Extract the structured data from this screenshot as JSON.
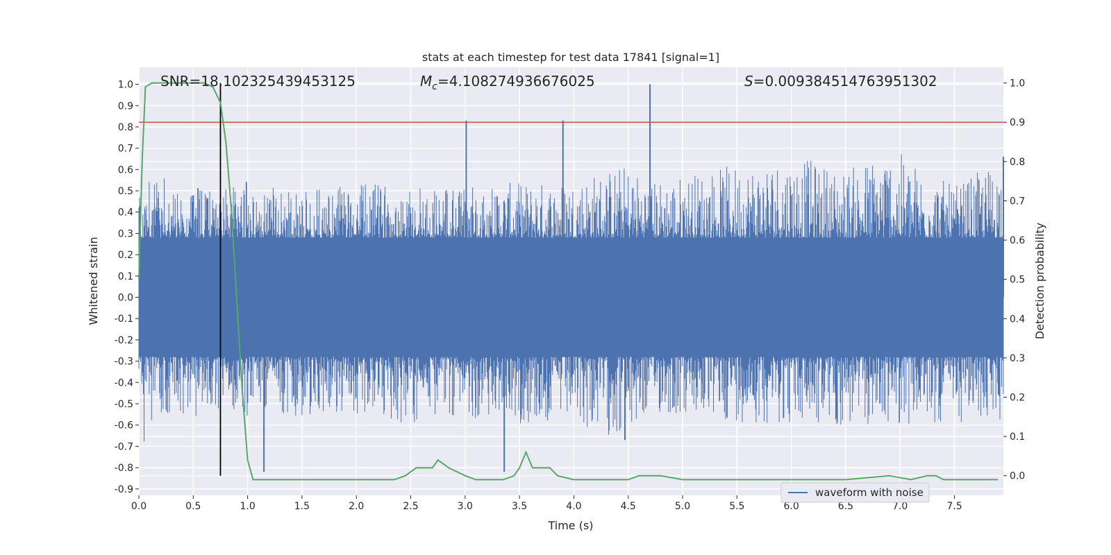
{
  "chart_data": {
    "type": "line",
    "title": "stats at each timestep for test data 17841 [signal=1]",
    "xlabel": "Time (s)",
    "ylabel": "Whitened strain",
    "ylabel_right": "Detection probability",
    "xlim": [
      0.0,
      7.95
    ],
    "ylim": [
      -0.93,
      1.08
    ],
    "ylim_right": [
      -0.05,
      1.04
    ],
    "x_ticks": [
      "0.0",
      "0.5",
      "1.0",
      "1.5",
      "2.0",
      "2.5",
      "3.0",
      "3.5",
      "4.0",
      "4.5",
      "5.0",
      "5.5",
      "6.0",
      "6.5",
      "7.0",
      "7.5"
    ],
    "y_ticks": [
      "-0.9",
      "-0.8",
      "-0.7",
      "-0.6",
      "-0.5",
      "-0.4",
      "-0.3",
      "-0.2",
      "-0.1",
      "0.0",
      "0.1",
      "0.2",
      "0.3",
      "0.4",
      "0.5",
      "0.6",
      "0.7",
      "0.8",
      "0.9",
      "1.0"
    ],
    "y_ticks_right": [
      "0.0",
      "0.1",
      "0.2",
      "0.3",
      "0.4",
      "0.5",
      "0.6",
      "0.7",
      "0.8",
      "0.9",
      "1.0"
    ],
    "grid": true,
    "legend_position": "lower-right",
    "annotations": {
      "snr": "SNR=18.102325439453125",
      "mc_symbol": "M",
      "mc_sub": "c",
      "mc_value": "=4.108274936676025",
      "s_symbol": "S",
      "s_value": "=0.009384514763951302"
    },
    "threshold_right": 0.9,
    "vline_x": 0.75,
    "series": [
      {
        "name": "waveform with noise",
        "color": "#4c72b0",
        "axis": "left",
        "envelope": {
          "x": [
            0.0,
            0.05,
            0.1,
            0.2,
            0.3,
            0.5,
            0.75,
            1.0,
            1.15,
            1.5,
            2.0,
            2.5,
            3.0,
            3.5,
            3.9,
            4.5,
            4.7,
            5.0,
            6.0,
            6.5,
            6.9,
            7.5,
            7.95
          ],
          "upper": [
            0.48,
            0.6,
            0.58,
            0.62,
            0.5,
            0.52,
            0.5,
            0.56,
            0.52,
            0.5,
            0.53,
            0.54,
            0.53,
            0.54,
            0.55,
            0.63,
            0.55,
            0.58,
            0.67,
            0.6,
            0.71,
            0.52,
            0.66
          ],
          "lower": [
            -0.6,
            -0.68,
            -0.6,
            -0.58,
            -0.55,
            -0.57,
            -0.52,
            -0.56,
            -0.54,
            -0.56,
            -0.56,
            -0.6,
            -0.56,
            -0.6,
            -0.6,
            -0.67,
            -0.55,
            -0.57,
            -0.6,
            -0.62,
            -0.6,
            -0.6,
            -0.58
          ]
        },
        "spikes": [
          {
            "x": 1.15,
            "y": -0.82
          },
          {
            "x": 3.01,
            "y": 0.83
          },
          {
            "x": 3.36,
            "y": -0.82
          },
          {
            "x": 3.9,
            "y": 0.83
          },
          {
            "x": 4.7,
            "y": 1.0
          },
          {
            "x": 4.47,
            "y": -0.67
          },
          {
            "x": 7.95,
            "y": 0.66
          }
        ]
      },
      {
        "name": "",
        "color": "#55a868",
        "axis": "right",
        "x": [
          0.0,
          0.03,
          0.06,
          0.12,
          0.2,
          0.4,
          0.6,
          0.68,
          0.75,
          0.8,
          0.85,
          0.9,
          0.95,
          1.0,
          1.05,
          1.15,
          1.3,
          1.5,
          1.7,
          1.8,
          2.0,
          2.2,
          2.35,
          2.45,
          2.55,
          2.6,
          2.7,
          2.75,
          2.8,
          2.85,
          3.0,
          3.1,
          3.2,
          3.35,
          3.45,
          3.5,
          3.56,
          3.62,
          3.7,
          3.78,
          3.85,
          4.0,
          4.3,
          4.5,
          4.6,
          4.7,
          4.8,
          5.0,
          5.5,
          6.0,
          6.2,
          6.5,
          6.9,
          7.1,
          7.25,
          7.33,
          7.4,
          7.6,
          7.9
        ],
        "y": [
          0.5,
          0.8,
          0.99,
          1.0,
          1.0,
          1.0,
          1.0,
          0.99,
          0.95,
          0.85,
          0.68,
          0.45,
          0.22,
          0.04,
          -0.01,
          -0.01,
          -0.01,
          -0.01,
          -0.01,
          -0.01,
          -0.01,
          -0.01,
          -0.01,
          0.0,
          0.02,
          0.02,
          0.02,
          0.04,
          0.03,
          0.02,
          0.0,
          -0.01,
          -0.01,
          -0.01,
          0.0,
          0.02,
          0.06,
          0.02,
          0.02,
          0.02,
          0.0,
          -0.01,
          -0.01,
          -0.01,
          0.0,
          0.0,
          0.0,
          -0.01,
          -0.01,
          -0.01,
          -0.01,
          -0.01,
          0.0,
          -0.01,
          0.0,
          0.0,
          -0.01,
          -0.01,
          -0.01
        ]
      }
    ]
  }
}
